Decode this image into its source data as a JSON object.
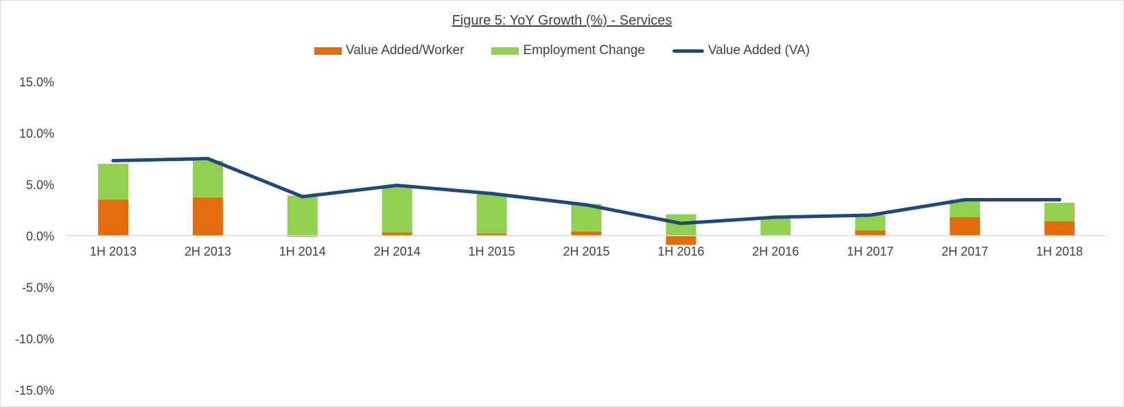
{
  "chart_data": {
    "type": "bar",
    "title": "Figure 5: YoY Growth (%) - Services",
    "xlabel": "",
    "ylabel": "",
    "ylim": [
      -15,
      15
    ],
    "yticks": [
      "15.0%",
      "10.0%",
      "5.0%",
      "0.0%",
      "-5.0%",
      "-10.0%",
      "-15.0%"
    ],
    "ytick_values": [
      15,
      10,
      5,
      0,
      -5,
      -10,
      -15
    ],
    "grid": false,
    "legend_position": "top",
    "categories": [
      "1H 2013",
      "2H 2013",
      "1H 2014",
      "2H 2014",
      "1H 2015",
      "2H 2015",
      "1H 2016",
      "2H 2016",
      "1H 2017",
      "2H 2017",
      "1H 2018"
    ],
    "series": [
      {
        "name": "Value Added/Worker",
        "kind": "stacked-bar",
        "color": "#e46c0a",
        "values": [
          3.5,
          3.7,
          -0.1,
          0.3,
          0.2,
          0.4,
          -0.9,
          0.0,
          0.5,
          1.8,
          1.4
        ]
      },
      {
        "name": "Employment Change",
        "kind": "stacked-bar",
        "color": "#92d050",
        "values": [
          3.5,
          3.6,
          3.9,
          4.5,
          3.9,
          2.7,
          2.1,
          1.7,
          1.5,
          1.7,
          1.8
        ]
      },
      {
        "name": "Value Added (VA)",
        "kind": "line",
        "color": "#1f497d",
        "values": [
          7.3,
          7.5,
          3.8,
          4.9,
          4.1,
          3.0,
          1.2,
          1.8,
          2.0,
          3.5,
          3.5
        ]
      }
    ]
  }
}
